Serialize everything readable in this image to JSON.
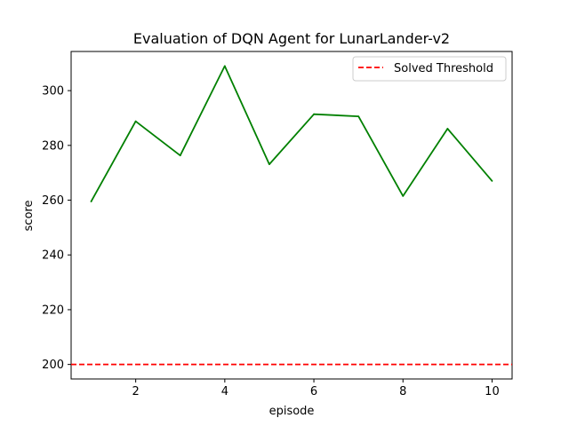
{
  "chart_data": {
    "type": "line",
    "title": "Evaluation of DQN Agent for LunarLander-v2",
    "xlabel": "episode",
    "ylabel": "score",
    "x": [
      1,
      2,
      3,
      4,
      5,
      6,
      7,
      8,
      9,
      10
    ],
    "series": [
      {
        "values": [
          259.5,
          288.8,
          276.3,
          309.0,
          273.1,
          291.4,
          290.6,
          261.5,
          286.1,
          267.0
        ],
        "color": "#008000"
      }
    ],
    "threshold": {
      "name": "Solved Threshold",
      "value": 200,
      "color": "#ff0000",
      "style": "dashed"
    },
    "xlim": [
      0.55,
      10.45
    ],
    "ylim": [
      194.7,
      314.3
    ],
    "xticks": [
      2,
      4,
      6,
      8,
      10
    ],
    "yticks": [
      200,
      220,
      240,
      260,
      280,
      300
    ],
    "xtick_labels": [
      "2",
      "4",
      "6",
      "8",
      "10"
    ],
    "ytick_labels": [
      "200",
      "220",
      "240",
      "260",
      "280",
      "300"
    ],
    "grid": false,
    "legend_position": "top-right"
  }
}
